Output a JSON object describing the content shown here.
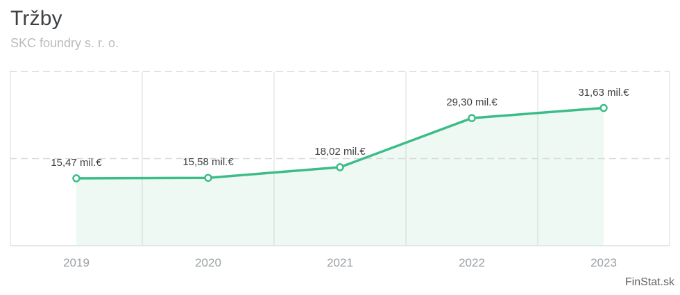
{
  "header": {
    "title": "Tržby",
    "subtitle": "SKC foundry s. r. o."
  },
  "watermark": "FinStat.sk",
  "colors": {
    "line": "#3cbc88",
    "marker_fill": "#ffffff",
    "area": "rgba(62,188,138,0.09)",
    "grid_dashed": "#d8d8d8",
    "grid_vertical": "#e4eae9",
    "plot_border": "#e3e7e9",
    "data_label": "#3f4245",
    "axis_label": "#9aa0a4"
  },
  "chart_data": {
    "type": "area",
    "title": "Tržby",
    "subtitle": "SKC foundry s. r. o.",
    "categories": [
      "2019",
      "2020",
      "2021",
      "2022",
      "2023"
    ],
    "values": [
      15.47,
      15.58,
      18.02,
      29.3,
      31.63
    ],
    "point_labels": [
      "15,47 mil.€",
      "15,58 mil.€",
      "18,02 mil.€",
      "29,30 mil.€",
      "31,63 mil.€"
    ],
    "unit": "mil.€",
    "xlabel": "",
    "ylabel": "",
    "ylim": [
      0,
      40
    ],
    "gridlines_y": [
      20,
      40
    ],
    "grid_vertical_between_categories": true,
    "legend": false,
    "source": "FinStat.sk"
  }
}
